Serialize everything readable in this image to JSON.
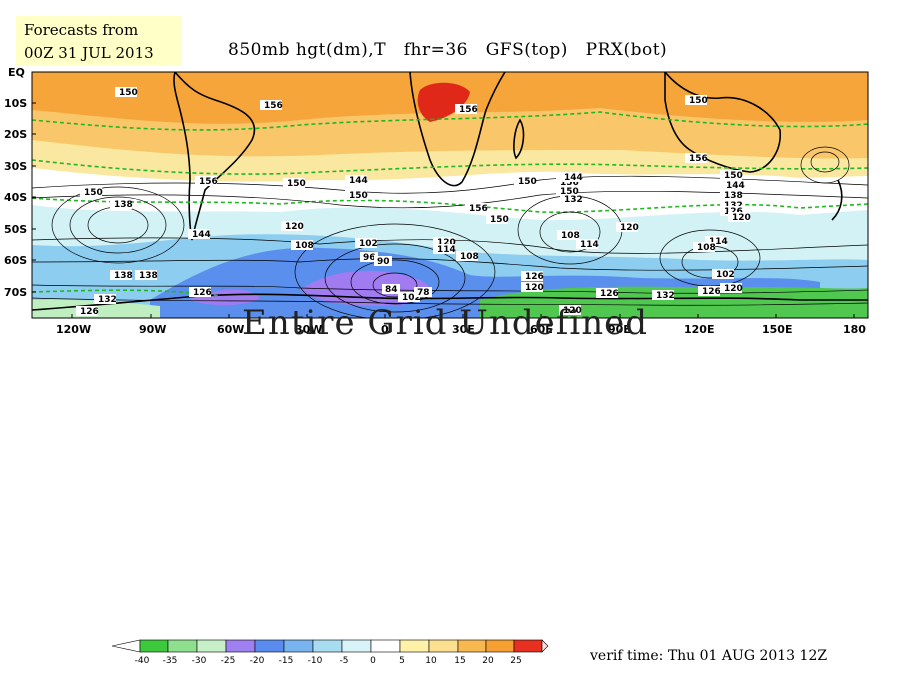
{
  "header": {
    "forecast_line1": "Forecasts from",
    "forecast_line2": "00Z 31 JUL 2013",
    "title": "850mb hgt(dm),T   fhr=36   GFS(top)   PRX(bot)"
  },
  "overlay_text": "Entire Grid Undefined",
  "footer": {
    "verif_time": "verif time: Thu 01 AUG 2013 12Z"
  },
  "axes": {
    "lat_labels": [
      "EQ",
      "10S",
      "20S",
      "30S",
      "40S",
      "50S",
      "60S",
      "70S"
    ],
    "lon_labels": [
      "120W",
      "90W",
      "60W",
      "30W",
      "0",
      "30E",
      "60E",
      "90E",
      "120E",
      "150E",
      "180"
    ]
  },
  "contour_labels": [
    "150",
    "156",
    "150",
    "156",
    "156",
    "150",
    "156",
    "144",
    "150",
    "138",
    "150",
    "144",
    "138",
    "132",
    "156",
    "150",
    "126",
    "120",
    "108",
    "102",
    "96",
    "90",
    "84",
    "102",
    "78",
    "138",
    "120",
    "114",
    "108",
    "150",
    "126",
    "120",
    "108",
    "114",
    "120",
    "156",
    "150",
    "144",
    "132",
    "126",
    "120",
    "144",
    "150",
    "114",
    "108",
    "102",
    "138",
    "132",
    "126",
    "120",
    "126",
    "132",
    "126",
    "120"
  ],
  "colorbar": {
    "values": [
      "-40",
      "-35",
      "-30",
      "-25",
      "-20",
      "-15",
      "-10",
      "-5",
      "0",
      "5",
      "10",
      "15",
      "20",
      "25"
    ],
    "colors": [
      "#3ec83e",
      "#8ee08e",
      "#c8f0c8",
      "#a080f0",
      "#5a8cf0",
      "#78b4f0",
      "#a8dcf0",
      "#d8f4f8",
      "#ffffff",
      "#fff2a8",
      "#fce090",
      "#f8b850",
      "#f5a030",
      "#e83020",
      "#ffd8d8"
    ]
  },
  "map_colors": {
    "warm_orange": "#f6a53a",
    "light_orange": "#f9c66a",
    "pale_yellow": "#fbe8a0",
    "white": "#ffffff",
    "pale_cyan": "#d2f2f6",
    "light_blue": "#8ccdf0",
    "medium_blue": "#5a8fee",
    "purple": "#a07cf0",
    "green": "#50c850",
    "light_green": "#bfeec0",
    "red": "#e02818"
  }
}
